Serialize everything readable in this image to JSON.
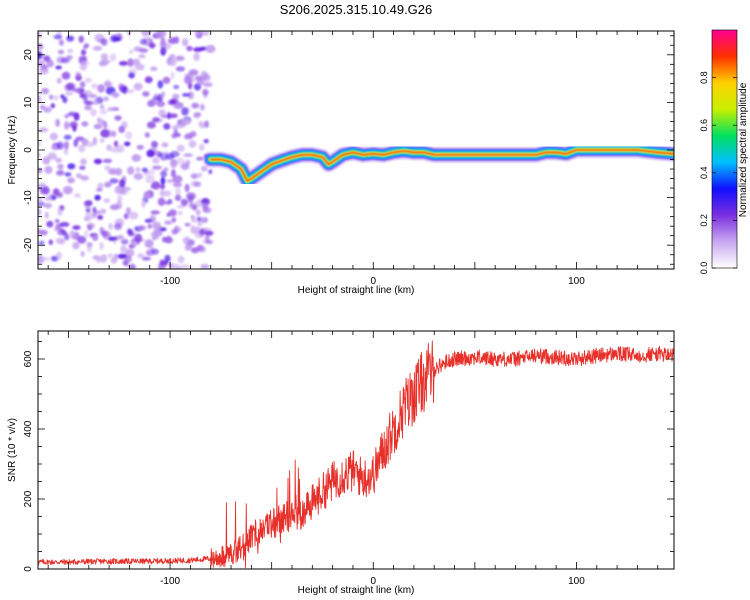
{
  "title": "S206.2025.315.10.49.G26",
  "chart_data": [
    {
      "type": "heatmap",
      "xlabel": "Height of straight line (km)",
      "ylabel": "Frequency (Hz)",
      "xlim": [
        -165,
        148
      ],
      "ylim": [
        -25,
        25
      ],
      "xticks": [
        -100,
        0,
        100
      ],
      "yticks": [
        -20,
        -10,
        0,
        10,
        20
      ],
      "noise_region_x": [
        -165,
        -80
      ],
      "ridge": {
        "x": [
          -80,
          -75,
          -70,
          -65,
          -62,
          -60,
          -55,
          -50,
          -45,
          -40,
          -35,
          -30,
          -25,
          -22,
          -20,
          -15,
          -10,
          -5,
          0,
          5,
          10,
          15,
          20,
          25,
          30,
          40,
          50,
          60,
          70,
          72,
          75,
          80,
          85,
          90,
          95,
          100,
          110,
          120,
          130,
          140,
          148
        ],
        "y": [
          -2,
          -2,
          -2.5,
          -4,
          -6.5,
          -6,
          -4.5,
          -3,
          -2.2,
          -1.5,
          -1,
          -1,
          -1.5,
          -3,
          -2.5,
          -1,
          -0.5,
          -1,
          -0.8,
          -1,
          -0.5,
          -0.2,
          -0.5,
          -0.5,
          -1,
          -1,
          -1,
          -1,
          -1,
          -1,
          -1,
          -1,
          -0.5,
          -0.5,
          -0.8,
          0,
          0,
          0,
          0,
          -0.5,
          -0.8
        ]
      },
      "colorbar": {
        "label": "Normalized spectral amplitude",
        "ticks": [
          "0.0",
          "0.2",
          "0.4",
          "0.6",
          "0.8"
        ],
        "tick_values": [
          0,
          0.2,
          0.4,
          0.6,
          0.8
        ],
        "range": [
          0,
          1
        ],
        "colormap": [
          "#ffffff",
          "#c9a8f0",
          "#7a2fe0",
          "#1010ff",
          "#00c0ff",
          "#00e060",
          "#c8f000",
          "#ffd000",
          "#ff3000",
          "#ff0090"
        ]
      }
    },
    {
      "type": "line",
      "xlabel": "Height of straight line (km)",
      "ylabel": "SNR (10 * v/v)",
      "xlim": [
        -165,
        148
      ],
      "ylim": [
        0,
        680
      ],
      "xticks": [
        -100,
        0,
        100
      ],
      "yticks": [
        0,
        200,
        400,
        600
      ],
      "series": [
        {
          "name": "SNR",
          "color": "#e8302a",
          "x": [
            -165,
            -150,
            -130,
            -110,
            -90,
            -80,
            -75,
            -70,
            -65,
            -60,
            -55,
            -50,
            -45,
            -40,
            -35,
            -30,
            -25,
            -20,
            -15,
            -10,
            -5,
            0,
            5,
            10,
            15,
            20,
            25,
            30,
            35,
            40,
            50,
            60,
            70,
            80,
            90,
            100,
            110,
            120,
            130,
            140,
            148
          ],
          "values": [
            20,
            20,
            22,
            22,
            25,
            30,
            35,
            45,
            60,
            90,
            120,
            130,
            140,
            170,
            150,
            190,
            220,
            250,
            270,
            280,
            260,
            270,
            340,
            400,
            460,
            500,
            540,
            570,
            590,
            600,
            605,
            600,
            600,
            610,
            605,
            600,
            610,
            615,
            610,
            615,
            610
          ]
        }
      ]
    }
  ]
}
